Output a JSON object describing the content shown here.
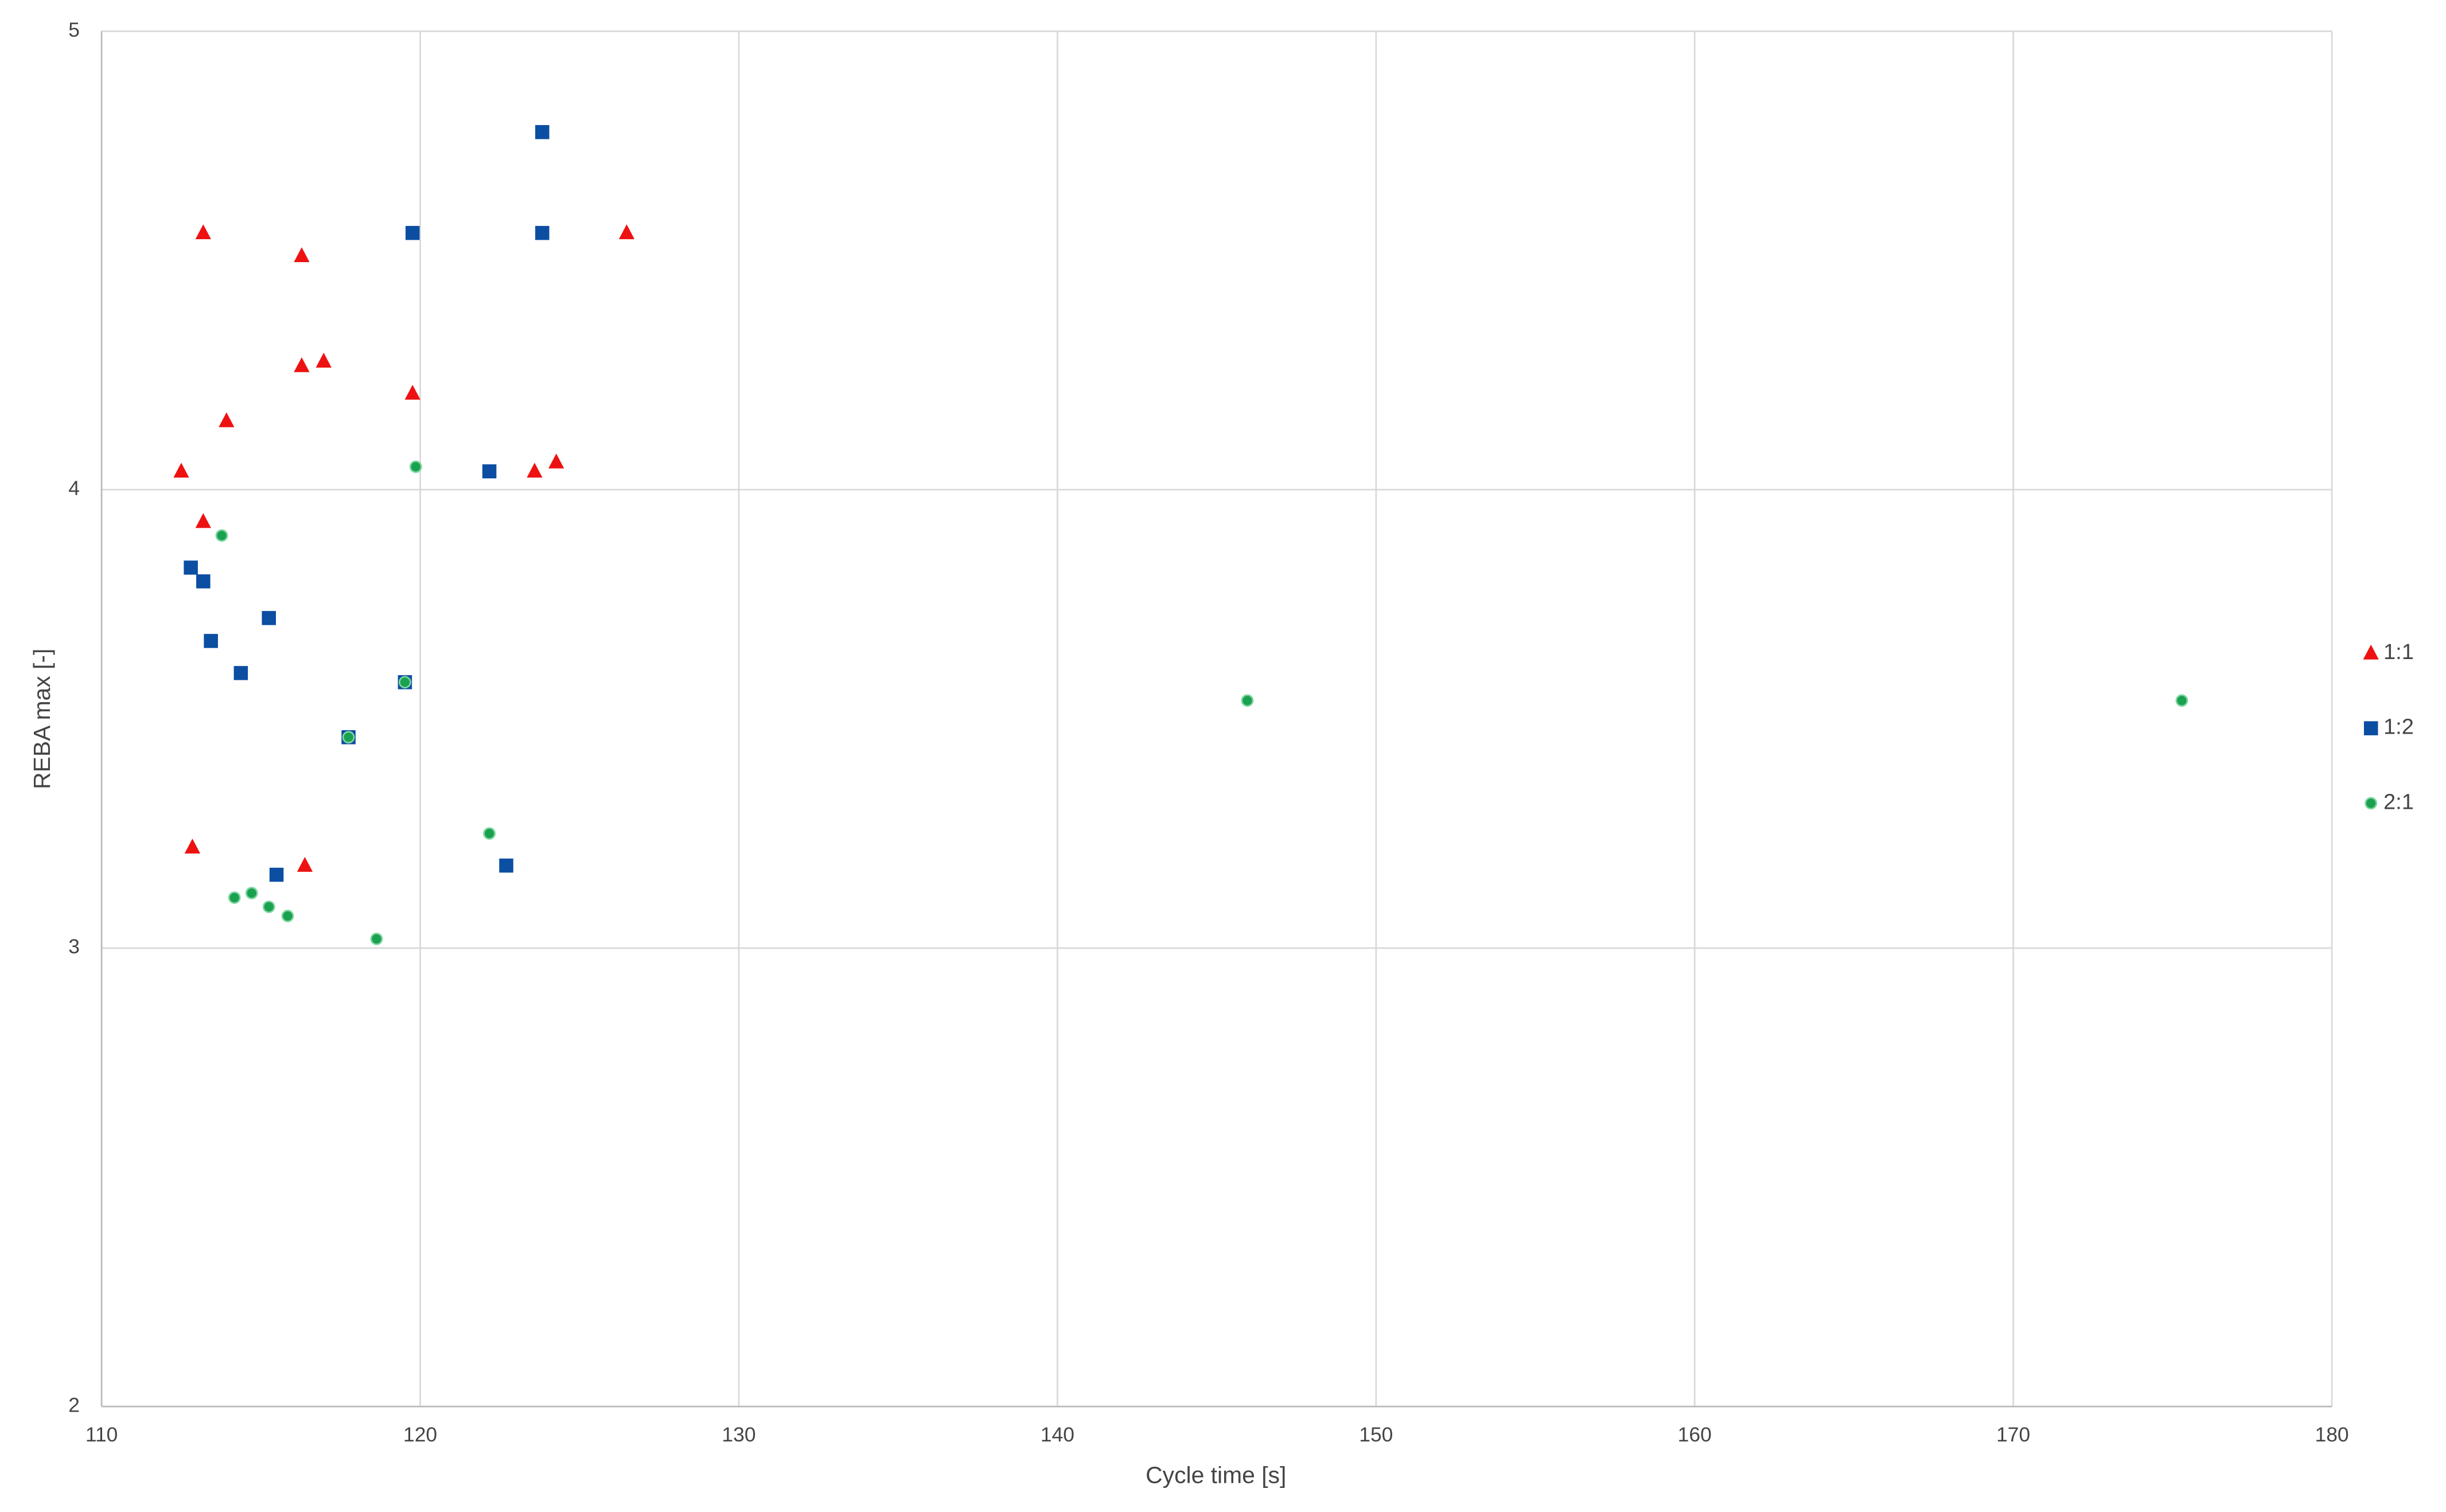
{
  "chart_data": {
    "type": "scatter",
    "xlabel": "Cycle time [s]",
    "ylabel": "REBA max [-]",
    "xlim": [
      110,
      180
    ],
    "xticks": [
      110,
      120,
      130,
      140,
      150,
      160,
      170,
      180
    ],
    "ylim": [
      2,
      5
    ],
    "yticks": [
      2,
      3,
      4,
      5
    ],
    "grid": true,
    "legend": "right",
    "series": [
      {
        "name": "1:1",
        "color": "#ee1111",
        "marker": "triangle",
        "x": [
          113.19,
          116.28,
          116.28,
          116.97,
          119.76,
          126.48,
          113.92,
          112.5,
          113.19,
          123.59,
          124.27,
          112.85,
          116.38
        ],
        "values": [
          4.56,
          4.51,
          4.27,
          4.28,
          4.21,
          4.56,
          4.15,
          4.04,
          3.93,
          4.04,
          4.06,
          3.22,
          3.18
        ]
      },
      {
        "name": "1:2",
        "color": "#0b4ea2",
        "marker": "square",
        "x": [
          123.83,
          119.76,
          123.83,
          122.17,
          112.8,
          113.19,
          113.43,
          115.25,
          114.37,
          119.52,
          117.75,
          115.49,
          122.7
        ],
        "values": [
          4.78,
          4.56,
          4.56,
          4.04,
          3.83,
          3.8,
          3.67,
          3.72,
          3.6,
          3.58,
          3.46,
          3.16,
          3.18
        ]
      },
      {
        "name": "2:1",
        "color": "#1aa150",
        "marker": "circle",
        "x": [
          119.86,
          113.77,
          119.52,
          117.75,
          145.96,
          175.29,
          122.17,
          114.17,
          114.71,
          115.25,
          115.84,
          118.63
        ],
        "values": [
          4.05,
          3.9,
          3.58,
          3.46,
          3.54,
          3.54,
          3.25,
          3.11,
          3.12,
          3.09,
          3.07,
          3.02
        ]
      }
    ]
  }
}
